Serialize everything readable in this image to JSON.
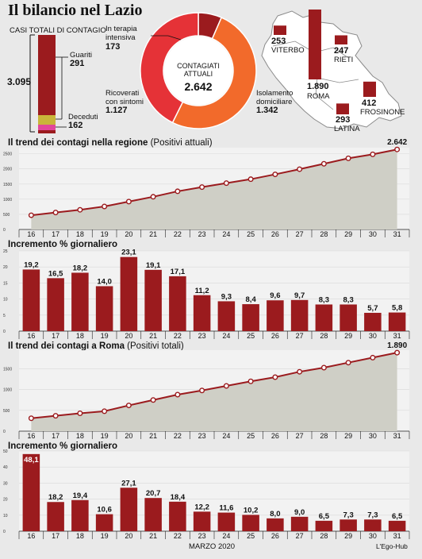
{
  "title": "Il bilancio nel Lazio",
  "casi_totali": {
    "label": "CASI TOTALI DI CONTAGIO",
    "total": "3.095",
    "guariti_label": "Guariti",
    "guariti": "291",
    "deceduti_label": "Deceduti",
    "deceduti": "162"
  },
  "donut": {
    "center_label": "CONTAGIATI ATTUALI",
    "center_value": "2.642",
    "segments": [
      {
        "label": "In terapia intensiva",
        "value": "173",
        "num": 173,
        "color": "#9b1b1e"
      },
      {
        "label": "Isolamento domiciliare",
        "value": "1.342",
        "num": 1342,
        "color": "#f26a2b"
      },
      {
        "label": "Ricoverati con sintomi",
        "value": "1.127",
        "num": 1127,
        "color": "#e53237"
      }
    ]
  },
  "map": {
    "provinces": [
      {
        "name": "VITERBO",
        "value": "253",
        "num": 253
      },
      {
        "name": "RIETI",
        "value": "247",
        "num": 247
      },
      {
        "name": "ROMA",
        "value": "1.890",
        "num": 1890
      },
      {
        "name": "LATINA",
        "value": "293",
        "num": 293
      },
      {
        "name": "FROSINONE",
        "value": "412",
        "num": 412
      }
    ]
  },
  "section1": {
    "title": "Il trend dei contagi nella regione",
    "subtitle": "(Positivi attuali)",
    "end_label": "2.642"
  },
  "section2": {
    "title": "Incremento % giornaliero"
  },
  "section3": {
    "title": "Il trend dei contagi a Roma",
    "subtitle": "(Positivi totali)",
    "end_label": "1.890"
  },
  "section4": {
    "title": "Incremento % giornaliero"
  },
  "footer": {
    "month": "MARZO 2020",
    "credit": "L'Ego-Hub"
  },
  "colors": {
    "bar": "#9b1b1e",
    "line": "#9b1b1e",
    "area": "#cfcfc6"
  },
  "chart_data": [
    {
      "type": "area",
      "title": "Il trend dei contagi nella regione",
      "subtitle": "(Positivi attuali)",
      "categories": [
        "16",
        "17",
        "18",
        "19",
        "20",
        "21",
        "22",
        "23",
        "24",
        "25",
        "26",
        "27",
        "28",
        "29",
        "30",
        "31"
      ],
      "values": [
        470,
        560,
        650,
        760,
        920,
        1080,
        1260,
        1400,
        1530,
        1660,
        1820,
        1990,
        2170,
        2350,
        2480,
        2642
      ],
      "ylim": [
        0,
        2700
      ],
      "yticks": [
        0,
        500,
        1000,
        1500,
        2000,
        2500
      ],
      "ytick_labels": [
        "0",
        "500",
        "1000",
        "1500",
        "2000",
        "2500"
      ]
    },
    {
      "type": "bar",
      "title": "Incremento % giornaliero",
      "categories": [
        "16",
        "17",
        "18",
        "19",
        "20",
        "21",
        "22",
        "23",
        "24",
        "25",
        "26",
        "27",
        "28",
        "29",
        "30",
        "31"
      ],
      "values": [
        19.2,
        16.5,
        18.2,
        14.0,
        23.1,
        19.1,
        17.1,
        11.2,
        9.3,
        8.4,
        9.6,
        9.7,
        8.3,
        8.3,
        5.7,
        5.8
      ],
      "labels": [
        "19,2",
        "16,5",
        "18,2",
        "14,0",
        "23,1",
        "19,1",
        "17,1",
        "11,2",
        "9,3",
        "8,4",
        "9,6",
        "9,7",
        "8,3",
        "8,3",
        "5,7",
        "5,8"
      ],
      "ylim": [
        0,
        25
      ],
      "yticks": [
        0,
        5,
        10,
        15,
        20,
        25
      ],
      "ytick_labels": [
        "0",
        "5",
        "10",
        "15",
        "20",
        "25"
      ]
    },
    {
      "type": "area",
      "title": "Il trend dei contagi a Roma",
      "subtitle": "(Positivi totali)",
      "categories": [
        "16",
        "17",
        "18",
        "19",
        "20",
        "21",
        "22",
        "23",
        "24",
        "25",
        "26",
        "27",
        "28",
        "29",
        "30",
        "31"
      ],
      "values": [
        310,
        370,
        430,
        480,
        620,
        750,
        880,
        980,
        1090,
        1200,
        1300,
        1430,
        1530,
        1650,
        1770,
        1890
      ],
      "ylim": [
        0,
        1950
      ],
      "yticks": [
        0,
        500,
        1000,
        1500
      ],
      "ytick_labels": [
        "0",
        "500",
        "1000",
        "1500"
      ]
    },
    {
      "type": "bar",
      "title": "Incremento % giornaliero",
      "categories": [
        "16",
        "17",
        "18",
        "19",
        "20",
        "21",
        "22",
        "23",
        "24",
        "25",
        "26",
        "27",
        "28",
        "29",
        "30",
        "31"
      ],
      "values": [
        48.1,
        18.2,
        19.4,
        10.6,
        27.1,
        20.7,
        18.4,
        12.2,
        11.6,
        10.2,
        8.0,
        9.0,
        6.5,
        7.3,
        7.3,
        6.5
      ],
      "labels": [
        "48,1",
        "18,2",
        "19,4",
        "10,6",
        "27,1",
        "20,7",
        "18,4",
        "12,2",
        "11,6",
        "10,2",
        "8,0",
        "9,0",
        "6,5",
        "7,3",
        "7,3",
        "6,5"
      ],
      "ylim": [
        0,
        50
      ],
      "yticks": [
        0,
        10,
        20,
        30,
        40,
        50
      ],
      "ytick_labels": [
        "0",
        "10",
        "20",
        "30",
        "40",
        "50"
      ]
    }
  ]
}
